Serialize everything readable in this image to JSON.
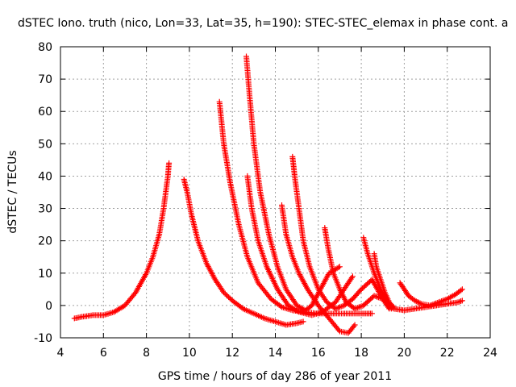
{
  "chart_data": {
    "type": "scatter",
    "title": "dSTEC Iono. truth (nico, Lon=33, Lat=35, h=190): STEC-STEC_elemax in phase cont. a",
    "xlabel": "GPS time / hours of day 286 of year 2011",
    "ylabel": "dSTEC  / TECUs",
    "xlim": [
      4,
      24
    ],
    "ylim": [
      -10,
      80
    ],
    "x_ticks": [
      4,
      6,
      8,
      10,
      12,
      14,
      16,
      18,
      20,
      22,
      24
    ],
    "y_ticks": [
      -10,
      0,
      10,
      20,
      30,
      40,
      50,
      60,
      70,
      80
    ],
    "grid": true,
    "marker": "+",
    "color": "#ff0000",
    "series": [
      {
        "x": [
          4.65,
          5.0,
          5.5,
          6.0,
          6.5,
          7.0,
          7.5,
          8.0,
          8.3,
          8.6,
          8.8,
          9.0,
          9.05
        ],
        "y": [
          -4,
          -3.5,
          -3,
          -3,
          -2,
          0,
          4,
          10,
          15,
          22,
          30,
          40,
          44
        ]
      },
      {
        "x": [
          9.75,
          9.9,
          10.1,
          10.4,
          10.8,
          11.2,
          11.6,
          12.0,
          12.5,
          13.0,
          13.5,
          14.0,
          14.5,
          15.0,
          15.3
        ],
        "y": [
          39,
          35,
          28,
          20,
          13,
          8,
          4,
          1.5,
          -1,
          -2.5,
          -4,
          -5,
          -6,
          -5.5,
          -5
        ]
      },
      {
        "x": [
          11.4,
          11.6,
          11.9,
          12.3,
          12.7,
          13.2,
          13.8,
          14.3,
          14.8,
          15.3,
          16.0,
          17.0,
          18.0,
          18.5
        ],
        "y": [
          63,
          50,
          38,
          25,
          15,
          7,
          2,
          -0.5,
          -1.5,
          -2,
          -2.5,
          -2.5,
          -2.5,
          -2.5
        ]
      },
      {
        "x": [
          12.65,
          12.8,
          13.0,
          13.3,
          13.7,
          14.1,
          14.5,
          15.0,
          15.4,
          15.7,
          16.1,
          16.5,
          17.0
        ],
        "y": [
          77,
          65,
          50,
          35,
          22,
          12,
          5,
          0,
          -1.5,
          0,
          5,
          10,
          12
        ]
      },
      {
        "x": [
          12.7,
          12.9,
          13.2,
          13.6,
          14.1,
          14.6,
          15.1,
          15.7,
          16.2,
          16.8,
          17.3,
          17.6
        ],
        "y": [
          40,
          30,
          20,
          12,
          5,
          0,
          -2,
          -3,
          -2,
          1,
          6,
          9
        ]
      },
      {
        "x": [
          14.3,
          14.5,
          14.8,
          15.1,
          15.5,
          16.0,
          16.5,
          17.0,
          17.4,
          17.7
        ],
        "y": [
          31,
          22,
          15,
          10,
          5,
          0,
          -4,
          -8,
          -8.5,
          -6
        ]
      },
      {
        "x": [
          14.8,
          14.9,
          15.1,
          15.3,
          15.6,
          16.0,
          16.4,
          16.8,
          17.2,
          17.6,
          18.0,
          18.5,
          19.0,
          19.4
        ],
        "y": [
          46,
          40,
          30,
          20,
          12,
          5,
          1,
          -1,
          0,
          2,
          5,
          8,
          2,
          -1
        ]
      },
      {
        "x": [
          16.3,
          16.45,
          16.7,
          17.0,
          17.3,
          17.7,
          18.1,
          18.6,
          19.0,
          19.3
        ],
        "y": [
          24,
          18,
          10,
          5,
          1,
          -1,
          0,
          3,
          2,
          -1
        ]
      },
      {
        "x": [
          18.1,
          18.3,
          18.6,
          18.9,
          19.2,
          19.5,
          20.0,
          20.5,
          21.0,
          21.5,
          22.0,
          22.5,
          22.7
        ],
        "y": [
          21,
          16,
          10,
          5,
          1,
          -1,
          -1.5,
          -1,
          -0.5,
          0,
          0.5,
          1,
          1.5
        ]
      },
      {
        "x": [
          18.6,
          18.7,
          18.9,
          19.1,
          19.3,
          19.5
        ],
        "y": [
          16,
          12,
          8,
          4,
          1,
          -0.5
        ]
      },
      {
        "x": [
          19.8,
          20.0,
          20.2,
          20.5,
          20.8,
          21.2,
          21.6,
          22.0,
          22.4,
          22.7
        ],
        "y": [
          7,
          5,
          3,
          1.5,
          0.5,
          0,
          1,
          2,
          3.5,
          5
        ]
      }
    ]
  }
}
